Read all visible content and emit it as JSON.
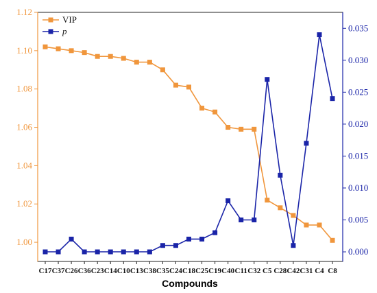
{
  "chart_data": {
    "type": "line",
    "title": "",
    "xlabel": "Compounds",
    "legend_position": "top-left",
    "grid": false,
    "categories": [
      "C17",
      "C37",
      "C26",
      "C36",
      "C23",
      "C14",
      "C10",
      "C13",
      "C38",
      "C35",
      "C24",
      "C18",
      "C25",
      "C19",
      "C40",
      "C11",
      "C32",
      "C5",
      "C28",
      "C42",
      "C31",
      "C4",
      "C8"
    ],
    "series": [
      {
        "name": "VIP",
        "axis": "left",
        "color": "#f0963c",
        "marker": "square",
        "values": [
          1.102,
          1.101,
          1.1,
          1.099,
          1.097,
          1.097,
          1.096,
          1.094,
          1.094,
          1.09,
          1.082,
          1.081,
          1.07,
          1.068,
          1.06,
          1.059,
          1.059,
          1.022,
          1.018,
          1.014,
          1.009,
          1.009,
          1.001
        ]
      },
      {
        "name": "p",
        "axis": "right",
        "color": "#1a24a8",
        "marker": "square",
        "values": [
          0.0,
          0.0,
          0.002,
          0.0,
          0.0,
          0.0,
          0.0,
          0.0,
          0.0,
          0.001,
          0.001,
          0.002,
          0.002,
          0.003,
          0.008,
          0.005,
          0.005,
          0.027,
          0.012,
          0.001,
          0.017,
          0.034,
          0.024
        ]
      }
    ],
    "left_axis": {
      "min": 0.99,
      "max": 1.12,
      "color": "#f0963c",
      "ticks": [
        "1.00",
        "1.02",
        "1.04",
        "1.06",
        "1.08",
        "1.10",
        "1.12"
      ]
    },
    "right_axis": {
      "min": -0.0015,
      "max": 0.0375,
      "color": "#1a24a8",
      "ticks": [
        "0.000",
        "0.005",
        "0.010",
        "0.015",
        "0.020",
        "0.025",
        "0.030",
        "0.035"
      ]
    }
  }
}
